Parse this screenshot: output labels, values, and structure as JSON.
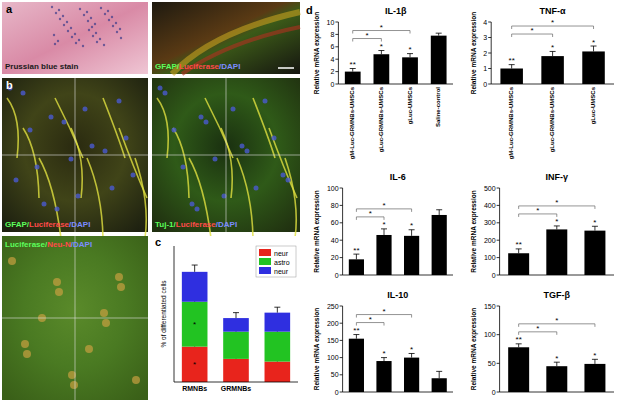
{
  "images": [
    {
      "panel": "a",
      "label": [
        {
          "text": "Prussian blue stain",
          "color": "#1a1a1a"
        }
      ]
    },
    {
      "label": [
        {
          "text": "GFAP/",
          "color": "#5cff5c"
        },
        {
          "text": "Luciferase",
          "color": "#ff4a4a"
        },
        {
          "text": "/DAPI",
          "color": "#7b8cff"
        }
      ]
    },
    {
      "panel": "b",
      "label": [
        {
          "text": "GFAP/",
          "color": "#5cff5c"
        },
        {
          "text": "Luciferase",
          "color": "#ff4a4a"
        },
        {
          "text": "/DAPI",
          "color": "#7b8cff"
        }
      ]
    },
    {
      "label": [
        {
          "text": "Tuj-1/",
          "color": "#5cff5c"
        },
        {
          "text": "Luciferase",
          "color": "#ff4a4a"
        },
        {
          "text": "/DAPI",
          "color": "#7b8cff"
        }
      ]
    },
    {
      "label": [
        {
          "text": "Luciferase/",
          "color": "#5cff5c"
        },
        {
          "text": "Neu-N",
          "color": "#ff4a4a"
        },
        {
          "text": "/DAPI",
          "color": "#7b8cff"
        }
      ]
    }
  ],
  "chart_data": [
    {
      "panel": "c",
      "type": "bar",
      "stacked": true,
      "y_label": "% of differentiated cells",
      "categories": [
        "RMNBs",
        "GRMNBs",
        null
      ],
      "ylim": [
        0,
        100
      ],
      "tick_labels": "x",
      "legend": "upper right",
      "series": [
        {
          "name": "neur",
          "color": "#e8241c",
          "values": [
            26,
            17,
            15
          ],
          "errors": [
            5,
            4,
            3
          ],
          "significance": [
            "*",
            null,
            null
          ]
        },
        {
          "name": "astro",
          "color": "#22c322",
          "values": [
            33,
            20,
            22
          ],
          "errors": [
            5,
            4,
            4
          ],
          "significance": [
            "*",
            null,
            null
          ]
        },
        {
          "name": "neur",
          "color": "#2f2fe0",
          "values": [
            22,
            10,
            14
          ],
          "errors": [
            5,
            4,
            4
          ],
          "significance": [
            null,
            null,
            null
          ]
        }
      ]
    },
    {
      "panel": "d",
      "type": "bar",
      "title": "IL-1β",
      "y_label": "Relative mRNA expression",
      "color": "#000000",
      "categories": [
        "gM-Luc-GRMNBs-UMSCs",
        "gLuc-GRMNBs-UMSCs",
        "gLuc-UMSCs",
        "Saline-control"
      ],
      "values": [
        2,
        4.8,
        4.3,
        7.8
      ],
      "errors": [
        0.5,
        0.6,
        0.6,
        0.4
      ],
      "significance": [
        "**",
        "*",
        "*",
        null
      ],
      "brackets": [
        {
          "from": 0,
          "to": 1,
          "label": "*"
        },
        {
          "from": 0,
          "to": 2,
          "label": "*"
        }
      ],
      "ylim": [
        0,
        10
      ],
      "yticks": [
        0,
        2,
        4,
        6,
        8,
        10
      ]
    },
    {
      "type": "bar",
      "title": "TNF-α",
      "y_label": "Relative mRNA expression",
      "color": "#000000",
      "categories": [
        "gM-Luc-GRMNBs-UMSCs",
        "gLuc-GRMNBs-UMSCs",
        "gLuc-UMSCs"
      ],
      "values": [
        1,
        1.8,
        2.1
      ],
      "errors": [
        0.25,
        0.3,
        0.35
      ],
      "significance": [
        "**",
        "*",
        "*"
      ],
      "brackets": [
        {
          "from": 0,
          "to": 1,
          "label": "*"
        },
        {
          "from": 0,
          "to": 2,
          "label": "*"
        }
      ],
      "ylim": [
        0,
        4
      ],
      "yticks": [
        0,
        1,
        2,
        3,
        4
      ]
    },
    {
      "type": "bar",
      "title": "IL-6",
      "y_label": "Relative mRNA expression",
      "color": "#000000",
      "categories": [
        null,
        null,
        null,
        null
      ],
      "values": [
        18,
        46,
        45,
        69
      ],
      "errors": [
        6,
        7,
        7,
        6
      ],
      "significance": [
        "**",
        "*",
        "*",
        null
      ],
      "brackets": [
        {
          "from": 0,
          "to": 1,
          "label": "*"
        },
        {
          "from": 0,
          "to": 2,
          "label": "*"
        }
      ],
      "ylim": [
        0,
        100
      ],
      "yticks": [
        0,
        20,
        40,
        60,
        80,
        100
      ]
    },
    {
      "type": "bar",
      "title": "INF-γ",
      "y_label": "Relative mRNA expression",
      "color": "#000000",
      "categories": [
        null,
        null,
        null
      ],
      "values": [
        125,
        262,
        255
      ],
      "errors": [
        25,
        20,
        25
      ],
      "significance": [
        "**",
        "*",
        "*"
      ],
      "brackets": [
        {
          "from": 0,
          "to": 1,
          "label": "*"
        },
        {
          "from": 0,
          "to": 2,
          "label": "*"
        }
      ],
      "ylim": [
        0,
        500
      ],
      "yticks": [
        0,
        100,
        200,
        300,
        400,
        500
      ]
    },
    {
      "type": "bar",
      "title": "IL-10",
      "y_label": "Relative mRNA expression",
      "color": "#000000",
      "categories": [
        null,
        null,
        null,
        null
      ],
      "values": [
        155,
        90,
        100,
        40
      ],
      "errors": [
        12,
        10,
        12,
        20
      ],
      "significance": [
        "**",
        "*",
        "*",
        null
      ],
      "brackets": [
        {
          "from": 0,
          "to": 1,
          "label": "*"
        },
        {
          "from": 0,
          "to": 2,
          "label": "*"
        }
      ],
      "ylim": [
        0,
        250
      ],
      "yticks": [
        0,
        50,
        100,
        150,
        200,
        250
      ]
    },
    {
      "type": "bar",
      "title": "TGF-β",
      "y_label": "Relative mRNA expression",
      "color": "#000000",
      "categories": [
        null,
        null,
        null
      ],
      "values": [
        78,
        45,
        49
      ],
      "errors": [
        6,
        7,
        8
      ],
      "significance": [
        "**",
        "*",
        "*"
      ],
      "brackets": [
        {
          "from": 0,
          "to": 1,
          "label": "*"
        },
        {
          "from": 0,
          "to": 2,
          "label": "*"
        }
      ],
      "ylim": [
        0,
        150
      ],
      "yticks": [
        0,
        50,
        100,
        150
      ]
    }
  ]
}
